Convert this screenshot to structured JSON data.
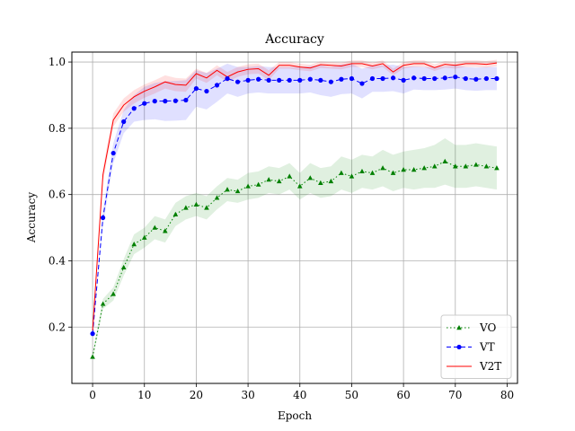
{
  "chart_data": {
    "type": "line",
    "title": "Accuracy",
    "xlabel": "Epoch",
    "ylabel": "Accuracy",
    "xlim": [
      -4,
      82
    ],
    "ylim": [
      0.03,
      1.03
    ],
    "xticks": [
      0,
      10,
      20,
      30,
      40,
      50,
      60,
      70,
      80
    ],
    "yticks": [
      0.2,
      0.4,
      0.6,
      0.8,
      1.0
    ],
    "grid": true,
    "legend_position": "lower right",
    "series": [
      {
        "name": "VO",
        "color": "#008000",
        "linestyle": "dotted",
        "marker": "triangle",
        "shaded_band": true,
        "x": [
          0,
          2,
          4,
          6,
          8,
          10,
          12,
          14,
          16,
          18,
          20,
          22,
          24,
          26,
          28,
          30,
          32,
          34,
          36,
          38,
          40,
          42,
          44,
          46,
          48,
          50,
          52,
          54,
          56,
          58,
          60,
          62,
          64,
          66,
          68,
          70,
          72,
          74,
          76,
          78
        ],
        "values": [
          0.11,
          0.27,
          0.3,
          0.38,
          0.45,
          0.47,
          0.5,
          0.49,
          0.54,
          0.56,
          0.57,
          0.56,
          0.59,
          0.615,
          0.61,
          0.625,
          0.63,
          0.645,
          0.64,
          0.655,
          0.625,
          0.65,
          0.635,
          0.64,
          0.665,
          0.655,
          0.67,
          0.665,
          0.68,
          0.665,
          0.675,
          0.675,
          0.68,
          0.685,
          0.7,
          0.685,
          0.685,
          0.69,
          0.685,
          0.68
        ],
        "band": [
          0.01,
          0.015,
          0.02,
          0.025,
          0.03,
          0.03,
          0.035,
          0.035,
          0.035,
          0.035,
          0.035,
          0.035,
          0.035,
          0.035,
          0.035,
          0.04,
          0.04,
          0.04,
          0.04,
          0.04,
          0.04,
          0.045,
          0.045,
          0.045,
          0.05,
          0.05,
          0.05,
          0.05,
          0.055,
          0.055,
          0.055,
          0.06,
          0.06,
          0.065,
          0.07,
          0.065,
          0.065,
          0.065,
          0.065,
          0.065
        ]
      },
      {
        "name": "VT",
        "color": "#0000ff",
        "linestyle": "dashed",
        "marker": "circle",
        "shaded_band": true,
        "x": [
          0,
          2,
          4,
          6,
          8,
          10,
          12,
          14,
          16,
          18,
          20,
          22,
          24,
          26,
          28,
          30,
          32,
          34,
          36,
          38,
          40,
          42,
          44,
          46,
          48,
          50,
          52,
          54,
          56,
          58,
          60,
          62,
          64,
          66,
          68,
          70,
          72,
          74,
          76,
          78
        ],
        "values": [
          0.18,
          0.53,
          0.725,
          0.82,
          0.86,
          0.875,
          0.882,
          0.882,
          0.883,
          0.885,
          0.92,
          0.912,
          0.93,
          0.95,
          0.94,
          0.945,
          0.948,
          0.945,
          0.945,
          0.945,
          0.945,
          0.948,
          0.945,
          0.94,
          0.948,
          0.95,
          0.935,
          0.95,
          0.95,
          0.952,
          0.945,
          0.952,
          0.95,
          0.95,
          0.952,
          0.955,
          0.95,
          0.948,
          0.95,
          0.95
        ],
        "band": [
          0.01,
          0.02,
          0.03,
          0.035,
          0.04,
          0.05,
          0.055,
          0.06,
          0.06,
          0.06,
          0.055,
          0.055,
          0.05,
          0.045,
          0.045,
          0.04,
          0.04,
          0.04,
          0.04,
          0.04,
          0.04,
          0.04,
          0.045,
          0.045,
          0.045,
          0.045,
          0.045,
          0.04,
          0.04,
          0.04,
          0.04,
          0.035,
          0.035,
          0.035,
          0.035,
          0.035,
          0.035,
          0.035,
          0.035,
          0.035
        ]
      },
      {
        "name": "V2T",
        "color": "#ff0000",
        "linestyle": "solid",
        "marker": "none",
        "shaded_band": true,
        "x": [
          0,
          2,
          4,
          6,
          8,
          10,
          12,
          14,
          16,
          18,
          20,
          22,
          24,
          26,
          28,
          30,
          32,
          34,
          36,
          38,
          40,
          42,
          44,
          46,
          48,
          50,
          52,
          54,
          56,
          58,
          60,
          62,
          64,
          66,
          68,
          70,
          72,
          74,
          76,
          78
        ],
        "values": [
          0.19,
          0.66,
          0.825,
          0.87,
          0.895,
          0.912,
          0.925,
          0.94,
          0.932,
          0.93,
          0.965,
          0.952,
          0.975,
          0.955,
          0.97,
          0.978,
          0.98,
          0.96,
          0.99,
          0.99,
          0.985,
          0.982,
          0.992,
          0.99,
          0.988,
          0.995,
          0.995,
          0.988,
          0.995,
          0.97,
          0.99,
          0.995,
          0.995,
          0.983,
          0.993,
          0.99,
          0.995,
          0.995,
          0.993,
          0.997
        ],
        "band": [
          0.01,
          0.02,
          0.02,
          0.02,
          0.02,
          0.02,
          0.02,
          0.02,
          0.02,
          0.02,
          0.015,
          0.015,
          0.015,
          0.015,
          0.015,
          0.015,
          0.015,
          0.015,
          0.01,
          0.01,
          0.01,
          0.01,
          0.01,
          0.01,
          0.01,
          0.01,
          0.01,
          0.01,
          0.01,
          0.01,
          0.01,
          0.01,
          0.01,
          0.01,
          0.01,
          0.01,
          0.01,
          0.01,
          0.01,
          0.01
        ]
      }
    ]
  }
}
